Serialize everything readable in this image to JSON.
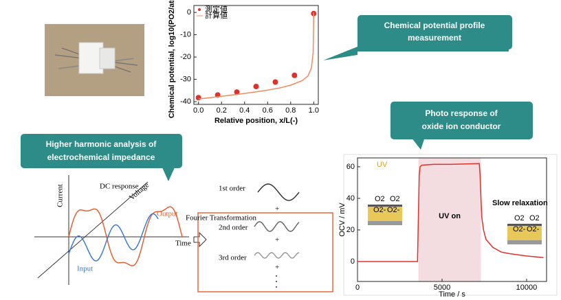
{
  "callouts": [
    {
      "lines": [
        "Chemical potential profile",
        "measurement"
      ]
    },
    {
      "lines": [
        "Photo response of",
        "oxide ion conductor"
      ]
    },
    {
      "lines": [
        "Higher harmonic analysis of",
        "electrochemical impedance"
      ]
    }
  ],
  "chart_data": [
    {
      "type": "scatter",
      "xlabel": "Relative position, x/L(-)",
      "ylabel": "Chemical potential, log10(PO2/atm)",
      "xlim": [
        -0.04,
        1.04
      ],
      "ylim": [
        -41.2,
        3.1
      ],
      "xticks": [
        {
          "value": 0,
          "label": "0.0"
        },
        {
          "value": 0.2,
          "label": "0.2"
        },
        {
          "value": 0.4,
          "label": "0.4"
        },
        {
          "value": 0.6,
          "label": "0.6"
        },
        {
          "value": 0.8,
          "label": "0.8"
        },
        {
          "value": 1,
          "label": "1.0"
        }
      ],
      "yticks": [
        0,
        -10,
        -20,
        -30,
        -40
      ],
      "legend": "upper left",
      "series": [
        {
          "name": "測定値",
          "type": "scatter",
          "color": "#e0302a",
          "x": [
            0,
            0.167,
            0.333,
            0.5,
            0.667,
            0.833,
            1
          ],
          "values": [
            -38.2,
            -37,
            -35.7,
            -33.2,
            -31.2,
            -28.2,
            -0.5
          ]
        },
        {
          "name": "計算値",
          "type": "line",
          "color": "#f08a5d",
          "x": [
            0,
            0.1,
            0.2,
            0.3,
            0.4,
            0.5,
            0.6,
            0.7,
            0.8,
            0.9,
            0.95,
            0.98,
            0.995,
            1
          ],
          "values": [
            -38.8,
            -38.2,
            -37.6,
            -37,
            -36.3,
            -35.6,
            -34.8,
            -33.9,
            -32.6,
            -30.6,
            -28.5,
            -25,
            -18,
            0
          ]
        }
      ]
    },
    {
      "type": "line",
      "xlabel": "Time / s",
      "ylabel": "OCV / mV",
      "xlim": [
        0,
        11180
      ],
      "ylim": [
        -12.6,
        65.6
      ],
      "xticks": [
        0,
        5000,
        10000
      ],
      "yticks": [
        0,
        20,
        40,
        60
      ],
      "highlight": {
        "x": [
          3600,
          7300
        ],
        "label": "UV on",
        "color": "#f3dde0"
      },
      "annotations": [
        "UV",
        "Slow relaxation",
        "O2",
        "O2-"
      ],
      "series": [
        {
          "type": "line",
          "color": "#e0302a",
          "x": [
            0,
            1000,
            2000,
            3000,
            3550,
            3600,
            3650,
            3700,
            3800,
            4500,
            5500,
            6500,
            7200,
            7250,
            7300,
            7350,
            7450,
            7600,
            8000,
            8500,
            9000,
            10000,
            11000
          ],
          "values": [
            0,
            0,
            0,
            0,
            0,
            30,
            55,
            60,
            61,
            61.5,
            61.5,
            61.8,
            62,
            55,
            40,
            28,
            20,
            14,
            9,
            6,
            5,
            3.5,
            2.5
          ]
        }
      ]
    }
  ],
  "diagram": {
    "dc_response": "DC response",
    "voltage": "Voltage",
    "current": "Current",
    "output": "Output",
    "time": "Time",
    "input": "Input",
    "fourier": "Fourier Transformation",
    "orders": [
      "1st order",
      "2nd order",
      "3rd order"
    ],
    "plus": "+"
  }
}
